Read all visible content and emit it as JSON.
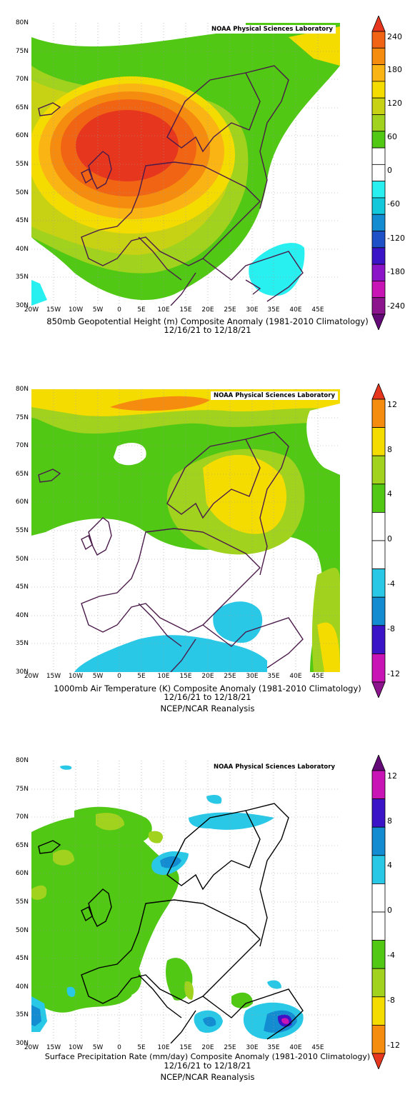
{
  "panels": [
    {
      "credit": "NOAA Physical Sciences Laboratory",
      "caption1": "850mb Geopotential Height (m) Composite Anomaly (1981-2010 Climatology)",
      "caption2": "12/16/21  to 12/18/21",
      "caption3": "",
      "lat_ticks": [
        "80N",
        "75N",
        "70N",
        "65N",
        "60N",
        "55N",
        "50N",
        "45N",
        "40N",
        "35N",
        "30N"
      ],
      "lon_ticks": [
        "20W",
        "15W",
        "10W",
        "5W",
        "0",
        "5E",
        "10E",
        "15E",
        "20E",
        "25E",
        "30E",
        "35E",
        "40E",
        "45E"
      ],
      "colorbar": {
        "labels": [
          "240",
          "180",
          "120",
          "60",
          "0",
          "-60",
          "-120",
          "-180",
          "-240"
        ],
        "colors": [
          "#e6371e",
          "#f06414",
          "#f58c0f",
          "#fab414",
          "#f5dc00",
          "#c8d214",
          "#a0d21e",
          "#50c814",
          "#ffffff",
          "#ffffff",
          "#28f0f0",
          "#14c8dc",
          "#148cd2",
          "#1e50c8",
          "#3c14c8",
          "#8c14c8",
          "#c814b4",
          "#8c148c",
          "#640a78"
        ]
      }
    },
    {
      "credit": "NOAA Physical Sciences Laboratory",
      "caption1": "1000mb Air Temperature (K) Composite Anomaly (1981-2010 Climatology)",
      "caption2": "12/16/21  to 12/18/21",
      "caption3": "NCEP/NCAR Reanalysis",
      "lat_ticks": [
        "80N",
        "75N",
        "70N",
        "65N",
        "60N",
        "55N",
        "50N",
        "45N",
        "40N",
        "35N",
        "30N"
      ],
      "lon_ticks": [
        "20W",
        "15W",
        "10W",
        "5W",
        "0",
        "5E",
        "10E",
        "15E",
        "20E",
        "25E",
        "30E",
        "35E",
        "40E",
        "45E"
      ],
      "colorbar": {
        "labels": [
          "12",
          "8",
          "4",
          "0",
          "-4",
          "-8",
          "-12"
        ],
        "colors": [
          "#e6371e",
          "#f58c0f",
          "#f5dc00",
          "#a0d21e",
          "#50c814",
          "#ffffff",
          "#ffffff",
          "#28c8e6",
          "#148cd2",
          "#3c14c8",
          "#c814b4",
          "#8c148c"
        ]
      }
    },
    {
      "credit": "NOAA Physical Sciences Laboratory",
      "caption1": "Surface Precipitation Rate (mm/day) Composite Anomaly (1981-2010 Climatology)",
      "caption2": "12/16/21  to 12/18/21",
      "caption3": "NCEP/NCAR Reanalysis",
      "lat_ticks": [
        "80N",
        "75N",
        "70N",
        "65N",
        "60N",
        "55N",
        "50N",
        "45N",
        "40N",
        "35N",
        "30N"
      ],
      "lon_ticks": [
        "20W",
        "15W",
        "10W",
        "5W",
        "0",
        "5E",
        "10E",
        "15E",
        "20E",
        "25E",
        "30E",
        "35E",
        "40E",
        "45E"
      ],
      "colorbar": {
        "labels": [
          "12",
          "8",
          "4",
          "0",
          "-4",
          "-8",
          "-12"
        ],
        "colors": [
          "#640a78",
          "#c814b4",
          "#3c14c8",
          "#148cd2",
          "#28c8e6",
          "#ffffff",
          "#ffffff",
          "#50c814",
          "#a0d21e",
          "#f5dc00",
          "#f58c0f",
          "#e6371e"
        ]
      }
    }
  ]
}
